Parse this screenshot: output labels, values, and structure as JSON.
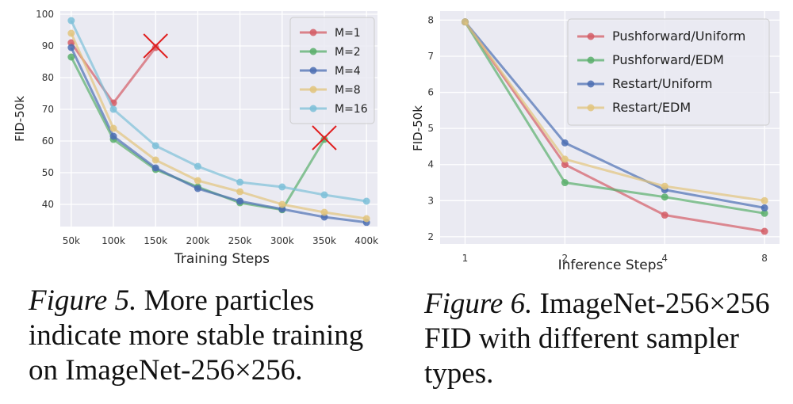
{
  "figures": [
    {
      "chart_data": {
        "type": "line",
        "xlabel": "Training Steps",
        "ylabel": "FID-50k",
        "categories": [
          "50k",
          "100k",
          "150k",
          "200k",
          "250k",
          "300k",
          "350k",
          "400k"
        ],
        "x": [
          50,
          100,
          150,
          200,
          250,
          300,
          350,
          400
        ],
        "xlim": [
          37,
          413
        ],
        "ylim": [
          33,
          101
        ],
        "yticks": [
          40,
          50,
          60,
          70,
          80,
          90,
          100
        ],
        "grid": true,
        "legend_position": "top-right",
        "series": [
          {
            "name": "M=1",
            "color": "#d45d66",
            "x": [
              50,
              100,
              150
            ],
            "values": [
              91,
              72,
              89.5
            ],
            "diverged_at": {
              "x": 150,
              "y": 90
            }
          },
          {
            "name": "M=2",
            "color": "#5aaf6c",
            "x": [
              50,
              100,
              150,
              200,
              250,
              300,
              350
            ],
            "values": [
              86.5,
              60.5,
              51,
              45.5,
              40.5,
              38.3,
              60.5
            ],
            "diverged_at": {
              "x": 350,
              "y": 61
            }
          },
          {
            "name": "M=4",
            "color": "#4c6fb3",
            "x": [
              50,
              100,
              150,
              200,
              250,
              300,
              350,
              400
            ],
            "values": [
              89.5,
              61.5,
              51.5,
              45,
              41,
              38.5,
              36,
              34.3
            ]
          },
          {
            "name": "M=8",
            "color": "#e2c47d",
            "x": [
              50,
              100,
              150,
              200,
              250,
              300,
              350,
              400
            ],
            "values": [
              94,
              64,
              54,
              47.5,
              44,
              40,
              37.5,
              35.5
            ]
          },
          {
            "name": "M=16",
            "color": "#7dc0d8",
            "x": [
              50,
              100,
              150,
              200,
              250,
              300,
              350,
              400
            ],
            "values": [
              98,
              70,
              58.5,
              52,
              47,
              45.5,
              43,
              41
            ]
          }
        ]
      },
      "caption": {
        "lead": "Figure 5.",
        "text": " More particles indicate more stable training on ImageNet-256×256."
      }
    },
    {
      "chart_data": {
        "type": "line",
        "xlabel": "Inference Steps",
        "ylabel": "FID-50k",
        "categories": [
          "1",
          "2",
          "4",
          "8"
        ],
        "x": [
          1,
          2,
          4,
          8
        ],
        "xscale": "log2",
        "xlim_log2": [
          -0.25,
          3.15
        ],
        "ylim": [
          1.8,
          8.25
        ],
        "yticks": [
          2,
          3,
          4,
          5,
          6,
          7,
          8
        ],
        "grid": true,
        "legend_position": "top-right",
        "series": [
          {
            "name": "Pushforward/Uniform",
            "color": "#d45d66",
            "x": [
              1,
              2,
              4,
              8
            ],
            "values": [
              7.95,
              4.0,
              2.6,
              2.15
            ]
          },
          {
            "name": "Pushforward/EDM",
            "color": "#5aaf6c",
            "x": [
              1,
              2,
              4,
              8
            ],
            "values": [
              7.95,
              3.5,
              3.1,
              2.65
            ]
          },
          {
            "name": "Restart/Uniform",
            "color": "#4c6fb3",
            "x": [
              1,
              2,
              4,
              8
            ],
            "values": [
              7.95,
              4.6,
              3.3,
              2.8
            ]
          },
          {
            "name": "Restart/EDM",
            "color": "#e2c47d",
            "x": [
              1,
              2,
              4,
              8
            ],
            "values": [
              7.95,
              4.15,
              3.4,
              3.0
            ]
          }
        ]
      },
      "caption": {
        "lead": "Figure 6.",
        "text": " ImageNet-256×256 FID with different sampler types."
      }
    }
  ]
}
